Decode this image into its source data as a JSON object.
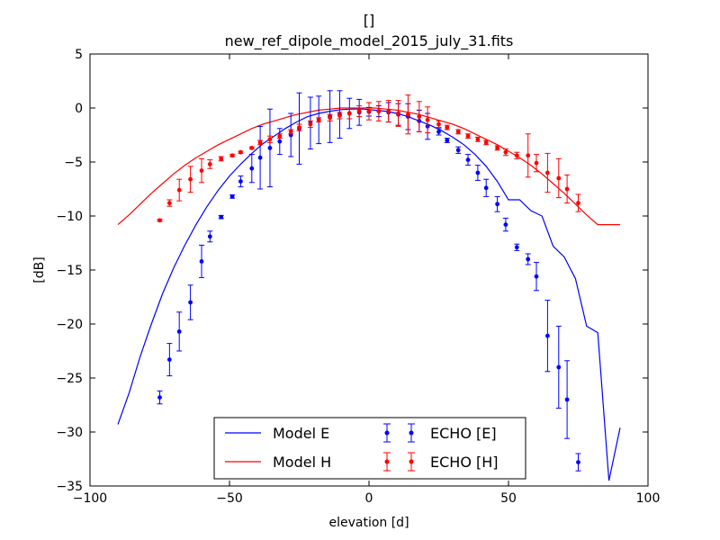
{
  "chart_data": {
    "type": "line",
    "title": "[]",
    "subtitle": "new_ref_dipole_model_2015_july_31.fits",
    "xlabel": "elevation [d]",
    "ylabel": "[dB]",
    "xlim": [
      -100,
      100
    ],
    "ylim": [
      -35,
      5
    ],
    "xticks": [
      -100,
      -50,
      0,
      50,
      100
    ],
    "yticks": [
      -35,
      -30,
      -25,
      -20,
      -15,
      -10,
      -5,
      0,
      5
    ],
    "grid": false,
    "legend_position": "lower-center",
    "colors": {
      "E": "#0000ff",
      "H": "#ff0000"
    },
    "series": [
      {
        "name": "Model E",
        "kind": "line",
        "color": "#0000ff",
        "x": [
          -90,
          -86,
          -82,
          -78,
          -74,
          -70,
          -66,
          -62,
          -58,
          -54,
          -50,
          -46,
          -42,
          -38,
          -34,
          -30,
          -26,
          -22,
          -18,
          -14,
          -10,
          -6,
          -2,
          2,
          6,
          10,
          14,
          18,
          22,
          26,
          30,
          34,
          38,
          42,
          46,
          50,
          54,
          58,
          62,
          66,
          70,
          74,
          78,
          82,
          86,
          90
        ],
        "y": [
          -29.3,
          -26.4,
          -23.0,
          -20.0,
          -17.2,
          -14.8,
          -12.7,
          -10.8,
          -9.1,
          -7.6,
          -6.3,
          -5.2,
          -4.2,
          -3.3,
          -2.6,
          -1.9,
          -1.3,
          -0.8,
          -0.5,
          -0.3,
          -0.15,
          -0.1,
          -0.1,
          -0.2,
          -0.3,
          -0.5,
          -0.8,
          -1.2,
          -1.6,
          -2.1,
          -2.7,
          -3.4,
          -4.3,
          -5.4,
          -6.8,
          -8.5,
          -8.5,
          -9.5,
          -10.0,
          -12.8,
          -13.8,
          -15.8,
          -20.2,
          -20.8,
          -34.5,
          -29.6
        ]
      },
      {
        "name": "Model H",
        "kind": "line",
        "color": "#ff0000",
        "x": [
          -90,
          -86,
          -82,
          -78,
          -74,
          -70,
          -66,
          -62,
          -58,
          -54,
          -50,
          -46,
          -42,
          -38,
          -34,
          -30,
          -26,
          -22,
          -18,
          -14,
          -10,
          -6,
          -2,
          2,
          6,
          10,
          14,
          18,
          22,
          26,
          30,
          34,
          38,
          42,
          46,
          50,
          54,
          58,
          62,
          66,
          70,
          74,
          78,
          82,
          86,
          90
        ],
        "y": [
          -10.8,
          -9.9,
          -8.9,
          -7.9,
          -7.0,
          -6.1,
          -5.3,
          -4.6,
          -4.0,
          -3.4,
          -2.9,
          -2.4,
          -1.9,
          -1.5,
          -1.2,
          -0.9,
          -0.6,
          -0.4,
          -0.2,
          -0.1,
          0.0,
          0.0,
          0.0,
          0.0,
          -0.1,
          -0.2,
          -0.4,
          -0.6,
          -0.9,
          -1.2,
          -1.5,
          -1.9,
          -2.4,
          -2.9,
          -3.4,
          -4.0,
          -4.6,
          -5.3,
          -6.1,
          -7.0,
          -7.9,
          -8.9,
          -9.9,
          -10.8,
          -10.8,
          -10.8
        ]
      },
      {
        "name": "ECHO [E]",
        "kind": "errorbar",
        "color": "#0000ff",
        "x": [
          -75,
          -71.5,
          -68,
          -64,
          -60,
          -57,
          -53,
          -49,
          -46,
          -42,
          -39,
          -35.5,
          -32,
          -28,
          -25,
          -21,
          -18,
          -14,
          -10.5,
          -7,
          -3.5,
          0,
          3.5,
          7,
          10.5,
          14,
          18,
          21,
          25,
          28,
          32,
          35.5,
          39,
          42,
          46,
          49,
          53,
          57,
          60,
          64,
          68,
          71,
          75
        ],
        "y": [
          -26.8,
          -23.3,
          -20.7,
          -18.0,
          -14.2,
          -11.9,
          -10.1,
          -8.2,
          -6.8,
          -5.6,
          -4.6,
          -3.7,
          -3.1,
          -2.5,
          -1.9,
          -1.4,
          -1.1,
          -0.8,
          -0.6,
          -0.5,
          -0.4,
          -0.35,
          -0.3,
          -0.4,
          -0.6,
          -0.8,
          -1.2,
          -1.7,
          -2.2,
          -3.0,
          -3.9,
          -4.8,
          -6.0,
          -7.4,
          -8.9,
          -10.8,
          -12.9,
          -14.0,
          -15.6,
          -21.1,
          -24.0,
          -27.0,
          -32.8
        ],
        "err": [
          0.6,
          1.5,
          1.8,
          1.6,
          1.5,
          0.5,
          0.15,
          0.15,
          0.5,
          1.3,
          2.9,
          3.6,
          1.2,
          2.0,
          3.3,
          2.4,
          2.2,
          2.4,
          2.2,
          1.4,
          1.2,
          0.4,
          0.5,
          0.9,
          1.0,
          1.2,
          1.0,
          1.2,
          0.3,
          0.2,
          0.3,
          0.5,
          0.7,
          0.8,
          0.7,
          0.6,
          0.3,
          0.5,
          1.3,
          3.3,
          3.8,
          3.6,
          0.8
        ]
      },
      {
        "name": "ECHO [H]",
        "kind": "errorbar",
        "color": "#ff0000",
        "x": [
          -75,
          -71.5,
          -68,
          -64,
          -60,
          -57,
          -53,
          -49,
          -46,
          -42,
          -39,
          -35.5,
          -32,
          -28,
          -25,
          -21,
          -18,
          -14,
          -10.5,
          -7,
          -3.5,
          0,
          3.5,
          7,
          10.5,
          14,
          18,
          21,
          25,
          28,
          32,
          35.5,
          39,
          42,
          46,
          49,
          53,
          57,
          60,
          64,
          68,
          71,
          75
        ],
        "y": [
          -10.4,
          -8.8,
          -7.6,
          -6.6,
          -5.8,
          -5.2,
          -4.7,
          -4.4,
          -4.1,
          -3.7,
          -3.2,
          -2.9,
          -2.6,
          -2.2,
          -1.8,
          -1.5,
          -1.1,
          -0.9,
          -0.7,
          -0.5,
          -0.3,
          -0.3,
          -0.3,
          -0.3,
          -0.5,
          -0.6,
          -0.8,
          -1.1,
          -1.5,
          -1.8,
          -2.2,
          -2.6,
          -2.9,
          -3.2,
          -3.7,
          -4.1,
          -4.4,
          -4.4,
          -5.1,
          -6.0,
          -6.5,
          -7.5,
          -8.8
        ],
        "err": [
          0.1,
          0.3,
          1.0,
          1.2,
          1.1,
          0.4,
          0.2,
          0.1,
          0.1,
          0.1,
          0.2,
          0.3,
          0.2,
          0.2,
          0.3,
          0.3,
          0.2,
          0.3,
          0.3,
          0.5,
          0.5,
          0.8,
          0.9,
          1.0,
          1.2,
          1.8,
          1.4,
          1.2,
          0.3,
          0.2,
          0.2,
          0.2,
          0.2,
          0.2,
          0.2,
          0.3,
          0.3,
          2.0,
          0.8,
          1.8,
          1.8,
          1.3,
          0.8
        ]
      }
    ]
  }
}
